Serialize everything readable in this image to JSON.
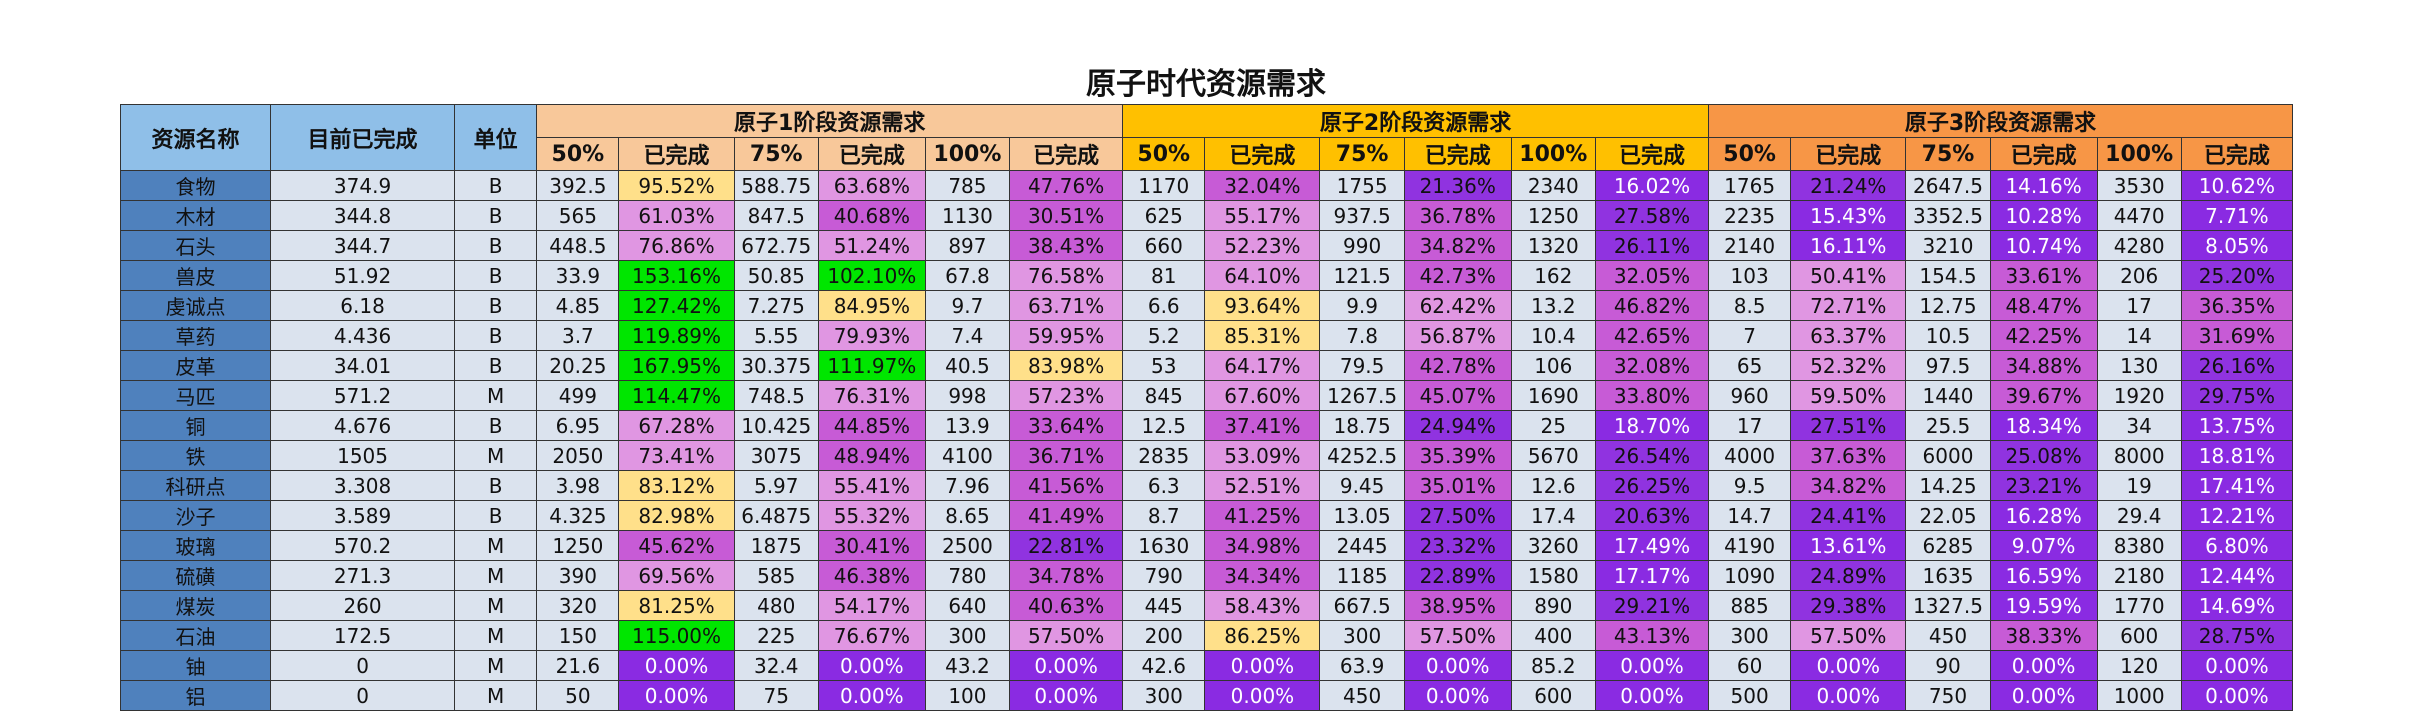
{
  "title": "原子时代资源需求",
  "headers": {
    "name": "资源名称",
    "current": "目前已完成",
    "unit": "单位",
    "groups": [
      "原子1阶段资源需求",
      "原子2阶段资源需求",
      "原子3阶段资源需求"
    ],
    "sub": [
      "50%",
      "已完成",
      "75%",
      "已完成",
      "100%",
      "已完成"
    ]
  },
  "rows": [
    {
      "name": "食物",
      "current": "374.9",
      "unit": "B",
      "stages": [
        [
          "392.5",
          "95.52%",
          "588.75",
          "63.68%",
          "785",
          "47.76%"
        ],
        [
          "1170",
          "32.04%",
          "1755",
          "21.36%",
          "2340",
          "16.02%"
        ],
        [
          "1765",
          "21.24%",
          "2647.5",
          "14.16%",
          "3530",
          "10.62%"
        ]
      ]
    },
    {
      "name": "木材",
      "current": "344.8",
      "unit": "B",
      "stages": [
        [
          "565",
          "61.03%",
          "847.5",
          "40.68%",
          "1130",
          "30.51%"
        ],
        [
          "625",
          "55.17%",
          "937.5",
          "36.78%",
          "1250",
          "27.58%"
        ],
        [
          "2235",
          "15.43%",
          "3352.5",
          "10.28%",
          "4470",
          "7.71%"
        ]
      ]
    },
    {
      "name": "石头",
      "current": "344.7",
      "unit": "B",
      "stages": [
        [
          "448.5",
          "76.86%",
          "672.75",
          "51.24%",
          "897",
          "38.43%"
        ],
        [
          "660",
          "52.23%",
          "990",
          "34.82%",
          "1320",
          "26.11%"
        ],
        [
          "2140",
          "16.11%",
          "3210",
          "10.74%",
          "4280",
          "8.05%"
        ]
      ]
    },
    {
      "name": "兽皮",
      "current": "51.92",
      "unit": "B",
      "stages": [
        [
          "33.9",
          "153.16%",
          "50.85",
          "102.10%",
          "67.8",
          "76.58%"
        ],
        [
          "81",
          "64.10%",
          "121.5",
          "42.73%",
          "162",
          "32.05%"
        ],
        [
          "103",
          "50.41%",
          "154.5",
          "33.61%",
          "206",
          "25.20%"
        ]
      ]
    },
    {
      "name": "虔诚点",
      "current": "6.18",
      "unit": "B",
      "stages": [
        [
          "4.85",
          "127.42%",
          "7.275",
          "84.95%",
          "9.7",
          "63.71%"
        ],
        [
          "6.6",
          "93.64%",
          "9.9",
          "62.42%",
          "13.2",
          "46.82%"
        ],
        [
          "8.5",
          "72.71%",
          "12.75",
          "48.47%",
          "17",
          "36.35%"
        ]
      ]
    },
    {
      "name": "草药",
      "current": "4.436",
      "unit": "B",
      "stages": [
        [
          "3.7",
          "119.89%",
          "5.55",
          "79.93%",
          "7.4",
          "59.95%"
        ],
        [
          "5.2",
          "85.31%",
          "7.8",
          "56.87%",
          "10.4",
          "42.65%"
        ],
        [
          "7",
          "63.37%",
          "10.5",
          "42.25%",
          "14",
          "31.69%"
        ]
      ]
    },
    {
      "name": "皮革",
      "current": "34.01",
      "unit": "B",
      "stages": [
        [
          "20.25",
          "167.95%",
          "30.375",
          "111.97%",
          "40.5",
          "83.98%"
        ],
        [
          "53",
          "64.17%",
          "79.5",
          "42.78%",
          "106",
          "32.08%"
        ],
        [
          "65",
          "52.32%",
          "97.5",
          "34.88%",
          "130",
          "26.16%"
        ]
      ]
    },
    {
      "name": "马匹",
      "current": "571.2",
      "unit": "M",
      "stages": [
        [
          "499",
          "114.47%",
          "748.5",
          "76.31%",
          "998",
          "57.23%"
        ],
        [
          "845",
          "67.60%",
          "1267.5",
          "45.07%",
          "1690",
          "33.80%"
        ],
        [
          "960",
          "59.50%",
          "1440",
          "39.67%",
          "1920",
          "29.75%"
        ]
      ]
    },
    {
      "name": "铜",
      "current": "4.676",
      "unit": "B",
      "stages": [
        [
          "6.95",
          "67.28%",
          "10.425",
          "44.85%",
          "13.9",
          "33.64%"
        ],
        [
          "12.5",
          "37.41%",
          "18.75",
          "24.94%",
          "25",
          "18.70%"
        ],
        [
          "17",
          "27.51%",
          "25.5",
          "18.34%",
          "34",
          "13.75%"
        ]
      ]
    },
    {
      "name": "铁",
      "current": "1505",
      "unit": "M",
      "stages": [
        [
          "2050",
          "73.41%",
          "3075",
          "48.94%",
          "4100",
          "36.71%"
        ],
        [
          "2835",
          "53.09%",
          "4252.5",
          "35.39%",
          "5670",
          "26.54%"
        ],
        [
          "4000",
          "37.63%",
          "6000",
          "25.08%",
          "8000",
          "18.81%"
        ]
      ]
    },
    {
      "name": "科研点",
      "current": "3.308",
      "unit": "B",
      "stages": [
        [
          "3.98",
          "83.12%",
          "5.97",
          "55.41%",
          "7.96",
          "41.56%"
        ],
        [
          "6.3",
          "52.51%",
          "9.45",
          "35.01%",
          "12.6",
          "26.25%"
        ],
        [
          "9.5",
          "34.82%",
          "14.25",
          "23.21%",
          "19",
          "17.41%"
        ]
      ]
    },
    {
      "name": "沙子",
      "current": "3.589",
      "unit": "B",
      "stages": [
        [
          "4.325",
          "82.98%",
          "6.4875",
          "55.32%",
          "8.65",
          "41.49%"
        ],
        [
          "8.7",
          "41.25%",
          "13.05",
          "27.50%",
          "17.4",
          "20.63%"
        ],
        [
          "14.7",
          "24.41%",
          "22.05",
          "16.28%",
          "29.4",
          "12.21%"
        ]
      ]
    },
    {
      "name": "玻璃",
      "current": "570.2",
      "unit": "M",
      "stages": [
        [
          "1250",
          "45.62%",
          "1875",
          "30.41%",
          "2500",
          "22.81%"
        ],
        [
          "1630",
          "34.98%",
          "2445",
          "23.32%",
          "3260",
          "17.49%"
        ],
        [
          "4190",
          "13.61%",
          "6285",
          "9.07%",
          "8380",
          "6.80%"
        ]
      ]
    },
    {
      "name": "硫磺",
      "current": "271.3",
      "unit": "M",
      "stages": [
        [
          "390",
          "69.56%",
          "585",
          "46.38%",
          "780",
          "34.78%"
        ],
        [
          "790",
          "34.34%",
          "1185",
          "22.89%",
          "1580",
          "17.17%"
        ],
        [
          "1090",
          "24.89%",
          "1635",
          "16.59%",
          "2180",
          "12.44%"
        ]
      ]
    },
    {
      "name": "煤炭",
      "current": "260",
      "unit": "M",
      "stages": [
        [
          "320",
          "81.25%",
          "480",
          "54.17%",
          "640",
          "40.63%"
        ],
        [
          "445",
          "58.43%",
          "667.5",
          "38.95%",
          "890",
          "29.21%"
        ],
        [
          "885",
          "29.38%",
          "1327.5",
          "19.59%",
          "1770",
          "14.69%"
        ]
      ]
    },
    {
      "name": "石油",
      "current": "172.5",
      "unit": "M",
      "stages": [
        [
          "150",
          "115.00%",
          "225",
          "76.67%",
          "300",
          "57.50%"
        ],
        [
          "200",
          "86.25%",
          "300",
          "57.50%",
          "400",
          "43.13%"
        ],
        [
          "300",
          "57.50%",
          "450",
          "38.33%",
          "600",
          "28.75%"
        ]
      ]
    },
    {
      "name": "铀",
      "current": "0",
      "unit": "M",
      "stages": [
        [
          "21.6",
          "0.00%",
          "32.4",
          "0.00%",
          "43.2",
          "0.00%"
        ],
        [
          "42.6",
          "0.00%",
          "63.9",
          "0.00%",
          "85.2",
          "0.00%"
        ],
        [
          "60",
          "0.00%",
          "90",
          "0.00%",
          "120",
          "0.00%"
        ]
      ]
    },
    {
      "name": "铝",
      "current": "0",
      "unit": "M",
      "stages": [
        [
          "50",
          "0.00%",
          "75",
          "0.00%",
          "100",
          "0.00%"
        ],
        [
          "300",
          "0.00%",
          "450",
          "0.00%",
          "600",
          "0.00%"
        ],
        [
          "500",
          "0.00%",
          "750",
          "0.00%",
          "1000",
          "0.00%"
        ]
      ]
    }
  ],
  "colors": {
    "header_fixed": "#8fbfe8",
    "stage1_header": "#f8c89a",
    "stage2_header": "#ffc000",
    "stage3_header": "#f79646",
    "name_column": "#4f81bd",
    "value_cells": "#dbe3ee",
    "pct_over_100": "#00e600",
    "pct_80_100": "#ffe08a",
    "pct_50_80": "#e096e2",
    "pct_30_50": "#c75bd6",
    "pct_20_30": "#9033e0",
    "pct_under_20": "#8a2be2"
  }
}
